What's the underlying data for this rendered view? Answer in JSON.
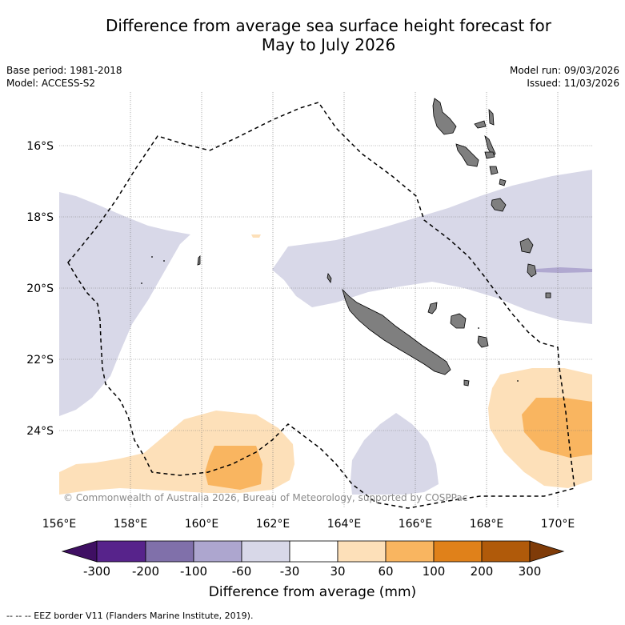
{
  "header": {
    "title_line1": "Difference from average sea surface height forecast for",
    "title_line2": "May to July 2026",
    "base_period": "Base period: 1981-2018",
    "model": "Model: ACCESS-S2",
    "model_run": "Model run: 09/03/2026",
    "issued": "Issued: 11/03/2026"
  },
  "map": {
    "lat_labels": [
      "16°S",
      "18°S",
      "20°S",
      "22°S",
      "24°S"
    ],
    "lon_labels": [
      "156°E",
      "158°E",
      "160°E",
      "162°E",
      "164°E",
      "166°E",
      "168°E",
      "170°E"
    ],
    "copyright": "© Commonwealth of Australia 2026, Bureau of Meteorology, supported by COSPPac",
    "colors": {
      "land": "#7f7f7f",
      "lightPurple": "#d8d8e8",
      "lightOrange": "#fde0b9",
      "midOrange": "#f9b560"
    }
  },
  "colorbar": {
    "ticks": [
      "-300",
      "-200",
      "-100",
      "-60",
      "-30",
      "30",
      "60",
      "100",
      "200",
      "300"
    ],
    "colors": [
      "#3f0f63",
      "#57238b",
      "#8070aa",
      "#ada6cf",
      "#d8d8e8",
      "#ffffff",
      "#fde0b9",
      "#f9b560",
      "#e0811a",
      "#b05a0a",
      "#7f3b08"
    ],
    "label": "Difference from average (mm)"
  },
  "footnote": "--  --  -- EEZ border V11 (Flanders Marine Institute, 2019)."
}
